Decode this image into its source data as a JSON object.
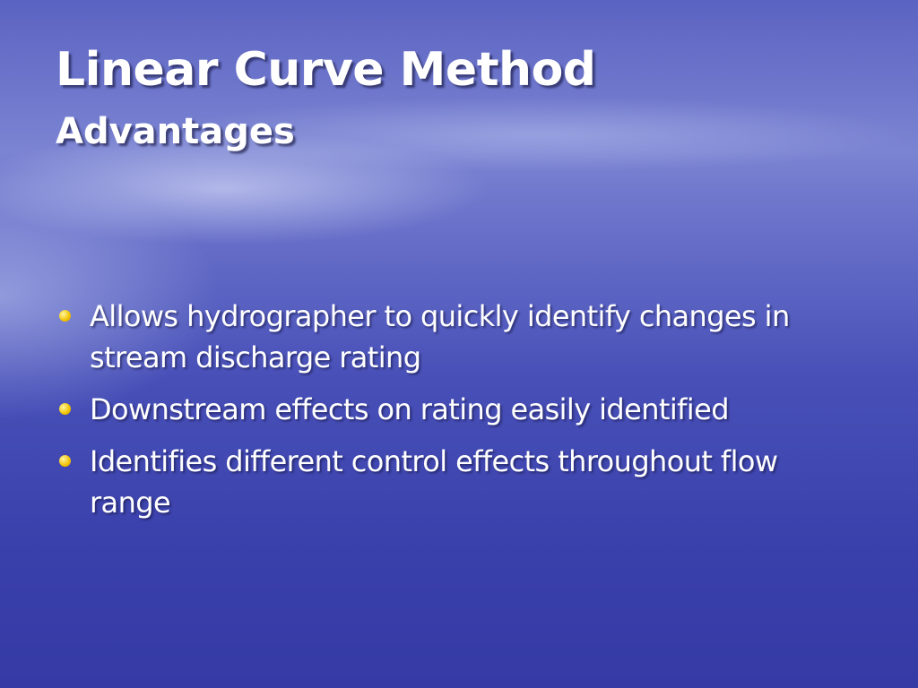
{
  "slide": {
    "title": "Linear Curve Method",
    "subtitle": "Advantages",
    "bullets": [
      "Allows hydrographer to quickly identify changes in stream discharge rating",
      "Downstream effects on rating easily identified",
      "Identifies different control effects throughout flow range"
    ]
  }
}
